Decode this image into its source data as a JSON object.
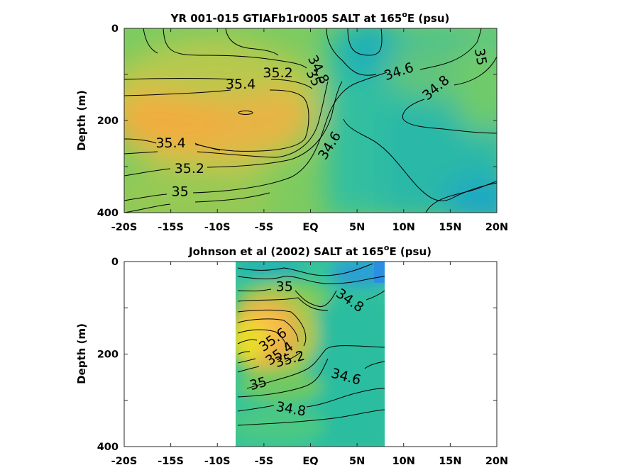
{
  "chart_data": [
    {
      "type": "heatmap",
      "title_main": "YR 001-015 GTIAFb1r0005 SALT at 165",
      "title_sup": "o",
      "title_end": "E (psu)",
      "ylabel": "Depth (m)",
      "xlabel": "",
      "x_ticks": [
        "-20S",
        "-15S",
        "-10S",
        "-5S",
        "EQ",
        "5N",
        "10N",
        "15N",
        "20N"
      ],
      "x_tick_values": [
        -20,
        -15,
        -10,
        -5,
        0,
        5,
        10,
        15,
        20
      ],
      "y_ticks": [
        "0",
        "200",
        "400"
      ],
      "y_tick_values": [
        0,
        200,
        400
      ],
      "xlim": [
        -20,
        20
      ],
      "ylim": [
        0,
        400
      ],
      "data_extent_lat": [
        -20,
        20
      ],
      "contour_labels": [
        {
          "text": "35.2",
          "lat": -3.5,
          "depth": 98,
          "angle": 0
        },
        {
          "text": "35.4",
          "lat": -7.5,
          "depth": 122,
          "angle": 0
        },
        {
          "text": "34.8",
          "lat": 0.8,
          "depth": 90,
          "angle": 63
        },
        {
          "text": "35",
          "lat": 0.3,
          "depth": 108,
          "angle": 63
        },
        {
          "text": "34.6",
          "lat": 9.5,
          "depth": 95,
          "angle": -18
        },
        {
          "text": "34.8",
          "lat": 13.5,
          "depth": 130,
          "angle": -40
        },
        {
          "text": "35",
          "lat": 18.2,
          "depth": 62,
          "angle": 80
        },
        {
          "text": "35.4",
          "lat": -15,
          "depth": 250,
          "angle": 0
        },
        {
          "text": "35.2",
          "lat": -13,
          "depth": 305,
          "angle": 0
        },
        {
          "text": "34.6",
          "lat": 2.1,
          "depth": 255,
          "angle": -58
        },
        {
          "text": "35",
          "lat": -14,
          "depth": 355,
          "angle": 0
        }
      ]
    },
    {
      "type": "heatmap",
      "title_main": "Johnson et al (2002) SALT at 165",
      "title_sup": "o",
      "title_end": "E (psu)",
      "ylabel": "Depth (m)",
      "xlabel": "",
      "x_ticks": [
        "-20S",
        "-15S",
        "-10S",
        "-5S",
        "EQ",
        "5N",
        "10N",
        "15N",
        "20N"
      ],
      "x_tick_values": [
        -20,
        -15,
        -10,
        -5,
        0,
        5,
        10,
        15,
        20
      ],
      "y_ticks": [
        "0",
        "200",
        "400"
      ],
      "y_tick_values": [
        0,
        200,
        400
      ],
      "xlim": [
        -20,
        20
      ],
      "ylim": [
        0,
        400
      ],
      "data_extent_lat": [
        -8,
        8
      ],
      "contour_labels": [
        {
          "text": "35",
          "lat": -2.8,
          "depth": 55,
          "angle": 0
        },
        {
          "text": "34.8",
          "lat": 4.2,
          "depth": 85,
          "angle": 35
        },
        {
          "text": "35.6",
          "lat": -4,
          "depth": 170,
          "angle": -35
        },
        {
          "text": "35.4",
          "lat": -3.3,
          "depth": 200,
          "angle": -35
        },
        {
          "text": "35.2",
          "lat": -2.2,
          "depth": 212,
          "angle": -15
        },
        {
          "text": "34.6",
          "lat": 3.8,
          "depth": 250,
          "angle": 15
        },
        {
          "text": "35",
          "lat": -5.6,
          "depth": 265,
          "angle": -15
        },
        {
          "text": "34.8",
          "lat": -2.1,
          "depth": 320,
          "angle": 10
        }
      ]
    }
  ]
}
